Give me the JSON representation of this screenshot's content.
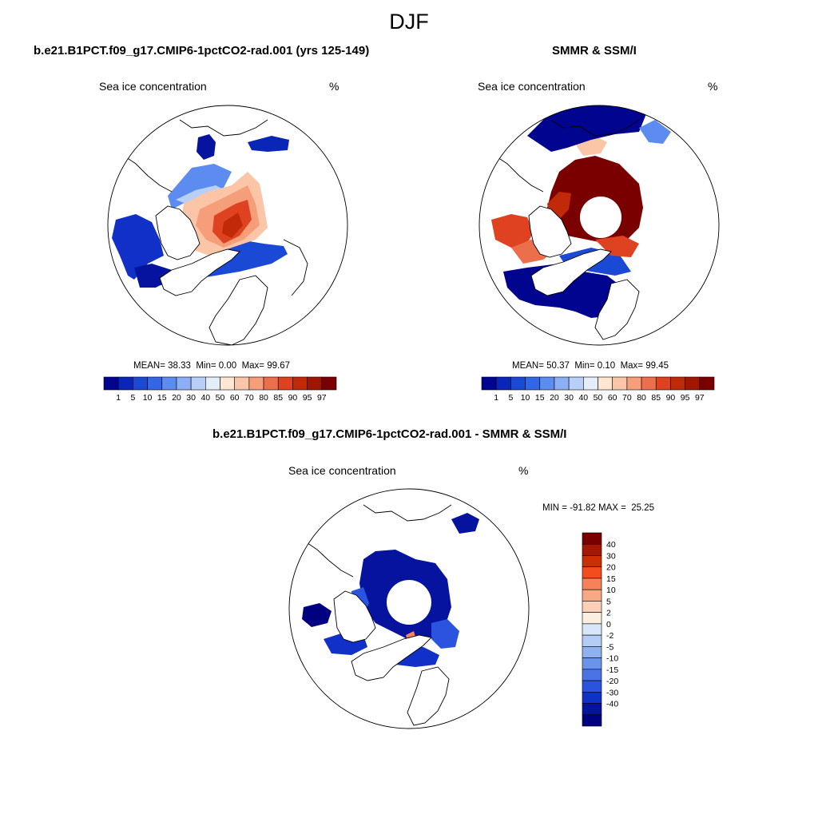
{
  "title": "DJF",
  "colors": {
    "seq_scale": [
      "#00048f",
      "#0a26b8",
      "#1a49d6",
      "#3366e6",
      "#5c8cf0",
      "#8caef5",
      "#b8cff7",
      "#e4eefb",
      "#fde6d2",
      "#fbc6a8",
      "#f59e79",
      "#ec6f4c",
      "#de4220",
      "#c02a08",
      "#a01600",
      "#7a0000"
    ],
    "diff_scale": [
      "#7a0000",
      "#a31800",
      "#cc2e06",
      "#f24d1a",
      "#f6825a",
      "#f7a884",
      "#fbd0b6",
      "#fdeee2",
      "#d7e6fa",
      "#b4cdf6",
      "#8fb1f0",
      "#6c93ea",
      "#4a74e6",
      "#2a54e0",
      "#1030c8",
      "#06139e",
      "#000080"
    ]
  },
  "chart_data": [
    {
      "type": "heatmap",
      "panel": "left",
      "title": "b.e21.B1PCT.f09_g17.CMIP6-1pctCO2-rad.001 (yrs 125-149)",
      "left_label": "Sea ice concentration",
      "right_label": "%",
      "stats": {
        "mean_label": "MEAN=",
        "mean": "38.33",
        "min_label": "Min=",
        "min": "0.00",
        "max_label": "Max=",
        "max": "99.67"
      },
      "colorbar_levels": [
        "1",
        "5",
        "10",
        "15",
        "20",
        "30",
        "40",
        "50",
        "60",
        "70",
        "80",
        "85",
        "90",
        "95",
        "97"
      ]
    },
    {
      "type": "heatmap",
      "panel": "right",
      "title": "SMMR & SSM/I",
      "left_label": "Sea ice concentration",
      "right_label": "%",
      "stats": {
        "mean_label": "MEAN=",
        "mean": "50.37",
        "min_label": "Min=",
        "min": "0.10",
        "max_label": "Max=",
        "max": "99.45"
      },
      "colorbar_levels": [
        "1",
        "5",
        "10",
        "15",
        "20",
        "30",
        "40",
        "50",
        "60",
        "70",
        "80",
        "85",
        "90",
        "95",
        "97"
      ]
    },
    {
      "type": "heatmap",
      "panel": "difference",
      "title": "b.e21.B1PCT.f09_g17.CMIP6-1pctCO2-rad.001 - SMMR & SSM/I",
      "left_label": "Sea ice concentration",
      "right_label": "%",
      "stats": {
        "min_label": "MIN =",
        "min": "-91.82",
        "max_label": "MAX =",
        "max": "25.25"
      },
      "colorbar_levels": [
        "40",
        "30",
        "20",
        "15",
        "10",
        "5",
        "2",
        "0",
        "-2",
        "-5",
        "-10",
        "-15",
        "-20",
        "-30",
        "-40"
      ]
    }
  ]
}
